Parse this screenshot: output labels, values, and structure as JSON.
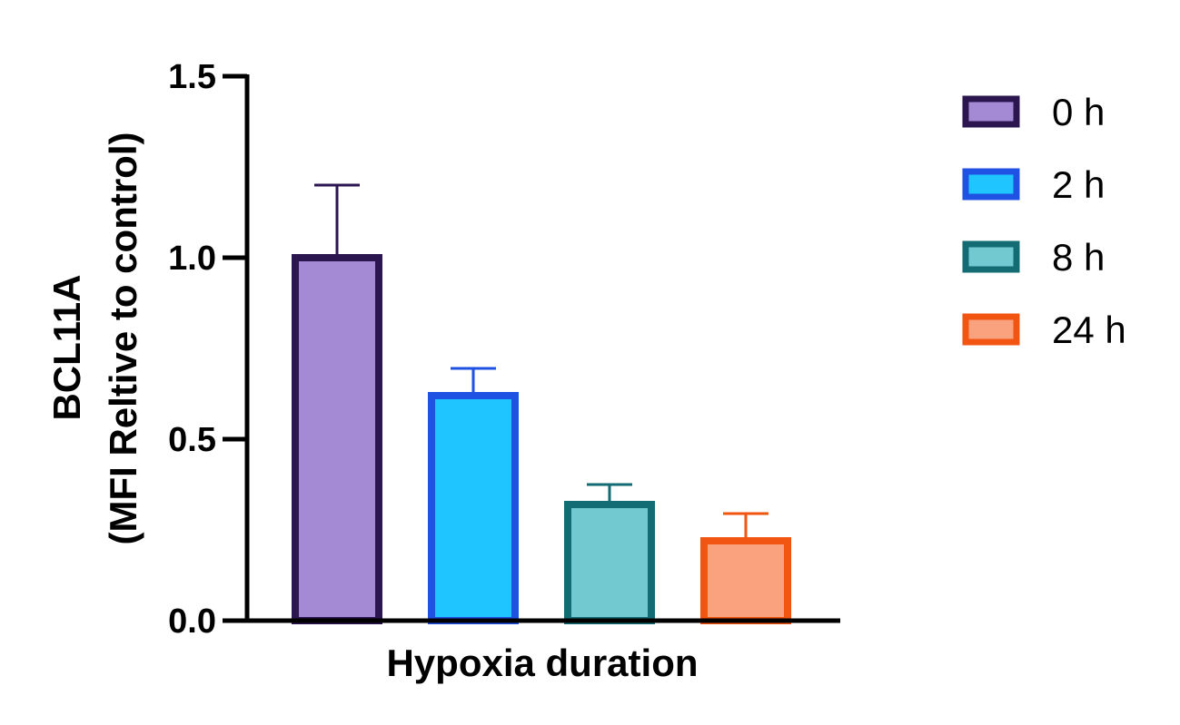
{
  "chart_data": {
    "type": "bar",
    "xlabel": "Hypoxia duration",
    "ylabel_line1": "BCL11A",
    "ylabel_line2": "(MFI Reltive to control)",
    "ylim": [
      0,
      1.5
    ],
    "yticks": [
      "0.0",
      "0.5",
      "1.0",
      "1.5"
    ],
    "ytick_values": [
      0,
      0.5,
      1.0,
      1.5
    ],
    "grid": false,
    "legend_position": "right",
    "series": [
      {
        "name": "0 h",
        "value": 1.0,
        "error": 0.2,
        "fill": "#a48ad4",
        "stroke": "#2b1650"
      },
      {
        "name": "2 h",
        "value": 0.62,
        "error": 0.075,
        "fill": "#1fc5ff",
        "stroke": "#1f52e3"
      },
      {
        "name": "8 h",
        "value": 0.32,
        "error": 0.055,
        "fill": "#72c9d0",
        "stroke": "#136b73"
      },
      {
        "name": "24 h",
        "value": 0.22,
        "error": 0.075,
        "fill": "#f9a27d",
        "stroke": "#f25511"
      }
    ]
  }
}
